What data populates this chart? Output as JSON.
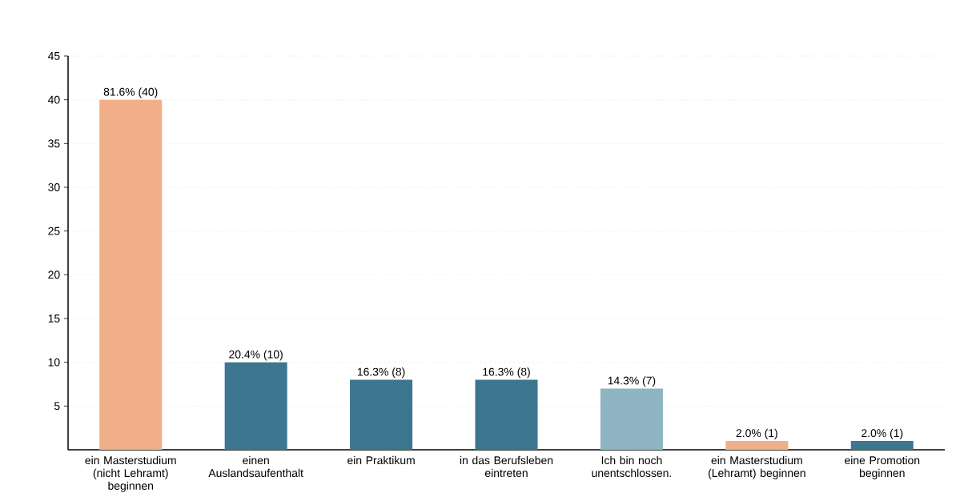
{
  "chart_data": {
    "type": "bar",
    "categories": [
      "ein Masterstudium (nicht Lehramt) beginnen",
      "einen Auslandsaufenthalt",
      "ein Praktikum",
      "in das Berufsleben eintreten",
      "Ich bin noch unentschlossen.",
      "ein Masterstudium (Lehramt) beginnen",
      "eine Promotion beginnen"
    ],
    "values": [
      40,
      10,
      8,
      8,
      7,
      1,
      1
    ],
    "colors": [
      "#f0af89",
      "#3c768f",
      "#3c768f",
      "#3c768f",
      "#8fb4c4",
      "#f0af89",
      "#3c768f"
    ],
    "value_labels": [
      "81.6% (40)",
      "20.4% (10)",
      "16.3% (8)",
      "16.3% (8)",
      "14.3% (7)",
      "2.0% (1)",
      "2.0% (1)"
    ],
    "ylim": [
      0,
      45
    ],
    "yticks": [
      5,
      10,
      15,
      20,
      25,
      30,
      35,
      40,
      45
    ],
    "grid": "y"
  }
}
